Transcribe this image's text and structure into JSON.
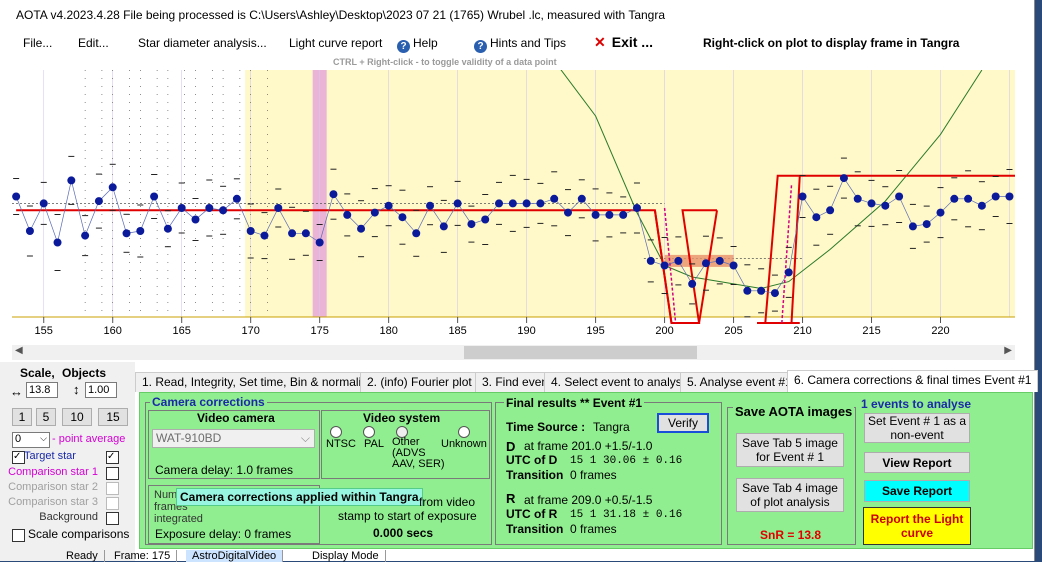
{
  "window": {
    "title": "AOTA v4.2023.4.28    File being processed is C:\\Users\\Ashley\\Desktop\\2023 07 21 (1765) Wrubel .lc, measured with Tangra"
  },
  "menu": {
    "file": "File...",
    "edit": "Edit...",
    "star_diameter": "Star diameter analysis...",
    "light_curve_report": "Light curve report",
    "help": "Help",
    "hints": "Hints and Tips",
    "exit": "Exit ...",
    "right_click_hint": "Right-click on plot to display frame in Tangra"
  },
  "plot": {
    "ctrl_hint": "CTRL + Right-click   -  to toggle validity of a data point",
    "x_ticks": [
      "155",
      "160",
      "165",
      "170",
      "175",
      "180",
      "185",
      "190",
      "195",
      "200",
      "205",
      "210",
      "215",
      "220"
    ]
  },
  "chart_data": {
    "type": "scatter",
    "xlabel": "",
    "ylabel": "",
    "xlim": [
      152.7,
      225.4
    ],
    "x": [
      153,
      154,
      155,
      156,
      157,
      158,
      159,
      160,
      161,
      162,
      163,
      164,
      165,
      166,
      167,
      168,
      169,
      170,
      171,
      172,
      173,
      174,
      175,
      176,
      177,
      178,
      179,
      180,
      181,
      182,
      183,
      184,
      185,
      186,
      187,
      188,
      189,
      190,
      191,
      192,
      193,
      194,
      195,
      196,
      197,
      198,
      199,
      200,
      201,
      202,
      203,
      204,
      205,
      206,
      207,
      208,
      209,
      210,
      211,
      212,
      213,
      214,
      215,
      216,
      217,
      218,
      219,
      220,
      221,
      222,
      223,
      224,
      225
    ],
    "y": [
      0.55,
      0.4,
      0.52,
      0.35,
      0.62,
      0.38,
      0.53,
      0.59,
      0.39,
      0.4,
      0.55,
      0.41,
      0.5,
      0.45,
      0.5,
      0.49,
      0.54,
      0.4,
      0.38,
      0.5,
      0.39,
      0.39,
      0.35,
      0.56,
      0.47,
      0.41,
      0.48,
      0.51,
      0.46,
      0.39,
      0.51,
      0.42,
      0.52,
      0.43,
      0.45,
      0.52,
      0.52,
      0.52,
      0.52,
      0.54,
      0.48,
      0.54,
      0.47,
      0.47,
      0.47,
      0.5,
      0.27,
      0.25,
      0.27,
      0.17,
      0.26,
      0.27,
      0.25,
      0.14,
      0.14,
      0.13,
      0.22,
      0.55,
      0.46,
      0.49,
      0.63,
      0.54,
      0.52,
      0.51,
      0.55,
      0.42,
      0.43,
      0.48,
      0.54,
      0.54,
      0.51,
      0.55,
      0.55
    ],
    "selected_frame": 175,
    "event_d": 201.0,
    "event_r": 209.0
  },
  "left_panel": {
    "scale_label": "Scale,",
    "objects_label": "Objects",
    "x_scale": "13.8",
    "y_scale": "1.00",
    "scale_buttons": [
      "1",
      "5",
      "10",
      "15"
    ],
    "avg_value": "0",
    "avg_label": "- point average",
    "target_label": "Target star",
    "objects": [
      "Comparison star 1",
      "Comparison star 2",
      "Comparison star 3",
      "Background"
    ],
    "scale_comparisons": "Scale comparisons"
  },
  "tabs": [
    "1.  Read, Integrity, Set time, Bin & normalise",
    "2. (info)  Fourier plot",
    "3. Find events",
    "4. Select event to analyse",
    "5. Analyse event #1",
    "6. Camera corrections & final times Event #1"
  ],
  "camera": {
    "group_title": "Camera corrections",
    "video_camera_title": "Video camera",
    "camera_model": "WAT-910BD",
    "camera_delay": "Camera delay: 1.0 frames",
    "video_system_title": "Video system",
    "systems": [
      "NTSC",
      "PAL",
      "Other\n(ADVS\nAAV, SER)",
      "Unknown"
    ],
    "num_frames_label": "Number of frames integrated",
    "applied_tooltip": "Camera corrections applied within Tangra",
    "from_video": "from video",
    "stamp_label": "stamp to start of exposure",
    "stamp_value": "0.000 secs",
    "exposure_delay": "Exposure delay: 0 frames"
  },
  "results": {
    "title": "Final results  **   Event #1",
    "time_source_label": "Time Source :",
    "time_source": "Tangra",
    "verify": "Verify",
    "d_label": "D",
    "d_frame": "at frame 201.0  +1.5/-1.0",
    "utc_d_label": "UTC of D",
    "utc_d": "15   1 30.06   ± 0.16",
    "transition_label": "Transition",
    "transition_d": "0 frames",
    "r_label": "R",
    "r_frame": "at frame 209.0  +0.5/-1.5",
    "utc_r_label": "UTC of R",
    "utc_r": "15   1 31.18   ± 0.16",
    "transition_r": "0 frames"
  },
  "save": {
    "title": "Save AOTA images",
    "tab5": "Save Tab 5 image for Event # 1",
    "tab4": "Save Tab 4 image of plot analysis",
    "snr": "SnR = 13.8"
  },
  "events": {
    "title": "1  events to analyse",
    "set_non_event": "Set Event # 1 as a non-event",
    "view_report": "View Report",
    "save_report": "Save Report",
    "report_lc": "Report the Light curve"
  },
  "statusbar": [
    "Ready",
    "Frame: 175",
    "AstroDigitalVideo",
    "Display Mode"
  ],
  "colors": {
    "plot_bg": "#fff8c8",
    "highlight": "#e9b4d6",
    "panel": "#90ee90",
    "fit_line": "#e00000",
    "point": "#0a1a9a"
  }
}
